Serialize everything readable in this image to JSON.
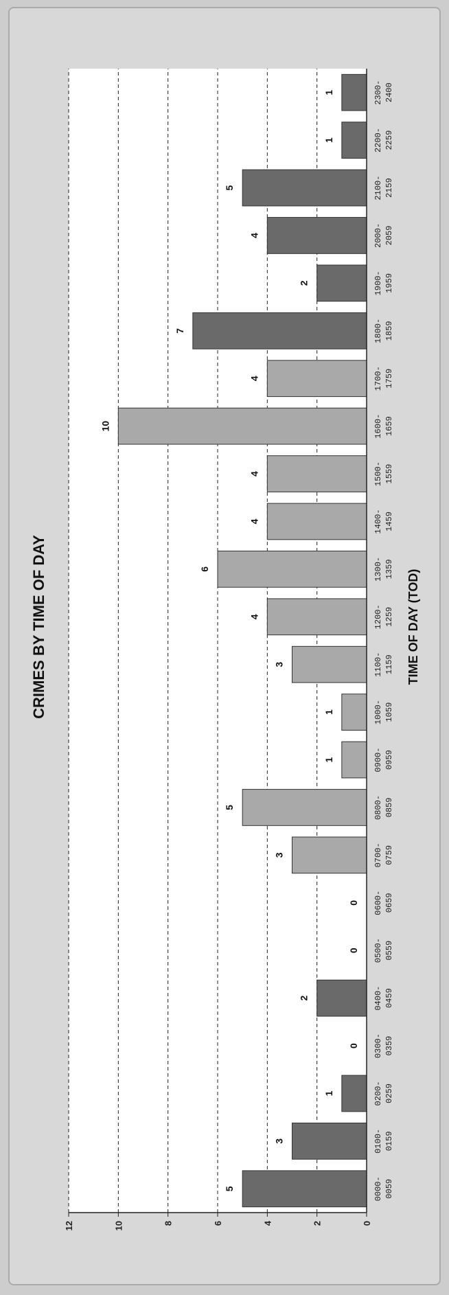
{
  "chart_data": {
    "type": "bar",
    "title": "CRIMES BY TIME OF DAY",
    "xlabel": "TIME OF DAY (TOD)",
    "ylabel": "",
    "ylim": [
      0,
      12
    ],
    "yticks": [
      "0",
      "2",
      "4",
      "6",
      "8",
      "10",
      "12"
    ],
    "grid": true,
    "orientation": "rotated-90",
    "categories": [
      [
        "0000-",
        "0059"
      ],
      [
        "0100-",
        "0159"
      ],
      [
        "0200-",
        "0259"
      ],
      [
        "0300-",
        "0359"
      ],
      [
        "0400-",
        "0459"
      ],
      [
        "0500-",
        "0559"
      ],
      [
        "0600-",
        "0659"
      ],
      [
        "0700-",
        "0759"
      ],
      [
        "0800-",
        "0859"
      ],
      [
        "0900-",
        "0959"
      ],
      [
        "1000-",
        "1059"
      ],
      [
        "1100-",
        "1159"
      ],
      [
        "1200-",
        "1259"
      ],
      [
        "1300-",
        "1359"
      ],
      [
        "1400-",
        "1459"
      ],
      [
        "1500-",
        "1559"
      ],
      [
        "1600-",
        "1659"
      ],
      [
        "1700-",
        "1759"
      ],
      [
        "1800-",
        "1859"
      ],
      [
        "1900-",
        "1959"
      ],
      [
        "2000-",
        "2059"
      ],
      [
        "2100-",
        "2159"
      ],
      [
        "2200-",
        "2259"
      ],
      [
        "2300-",
        "2400"
      ]
    ],
    "values": [
      5,
      3,
      1,
      0,
      2,
      0,
      0,
      3,
      5,
      1,
      1,
      3,
      4,
      6,
      4,
      4,
      10,
      4,
      7,
      2,
      4,
      5,
      1,
      1
    ],
    "colors": {
      "dark": "#6a6a6a",
      "light": "#a9a9a9",
      "plot_bg": "#ffffff",
      "page_bg": "#d8d8d8"
    },
    "bar_tones": [
      "dark",
      "dark",
      "dark",
      "dark",
      "dark",
      "dark",
      "dark",
      "light",
      "light",
      "light",
      "light",
      "light",
      "light",
      "light",
      "light",
      "light",
      "light",
      "light",
      "dark",
      "dark",
      "dark",
      "dark",
      "dark",
      "dark"
    ]
  }
}
